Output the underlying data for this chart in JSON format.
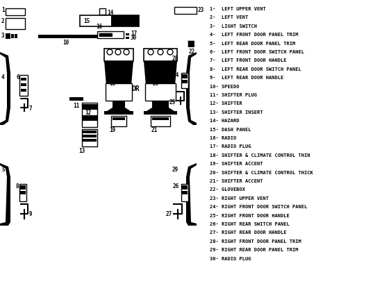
{
  "bg_color": "#ffffff",
  "diagram_bg": "#ffffff",
  "black": "#000000",
  "gray": "#888888",
  "light_gray": "#cccccc",
  "legend": [
    "1-  LEFT UPPER VENT",
    "2-  LEFT VENT",
    "3-  LIGHT SWITCH",
    "4-  LEFT FRONT DOOR PANEL TRIM",
    "5-  LEFT REAR DOOR PANEL TRIM",
    "6-  LEFT FRONT DOOR SWITCH PANEL",
    "7-  LEFT FRONT DOOR HANDLE",
    "8-  LEFT REAR DOOR SWITCH PANEL",
    "9-  LEFT REAR DOOR HANDLE",
    "10- SPEEDO",
    "11- SHIFTER PLUG",
    "12- SHIFTER",
    "13- SHIFTER INSERT",
    "14- HAZARD",
    "15- DASH PANEL",
    "16- RADIO",
    "17- RADIO PLUG",
    "18- SHIFTER & CLIMATE CONTROL THIN",
    "19- SHIFTER ACCENT",
    "20- SHIFTER & CLIMATE CONTROL THICK",
    "21- SHIFTER ACCENT",
    "22- GLOVEBOX",
    "23- RIGHT UPPER VENT",
    "24- RIGHT FRONT DOOR SWITCH PANEL",
    "25- RIGHT FRONT DOOR HANDLE",
    "26- RIGHT REAR SWITCH PANEL",
    "27- RIGHT REAR DOOR HANDLE",
    "28- RIGHT FRONT DOOR PANEL TRIM",
    "29- RIGHT REAR DOOR PANEL TRIM",
    "30- RADIO PLUG"
  ]
}
